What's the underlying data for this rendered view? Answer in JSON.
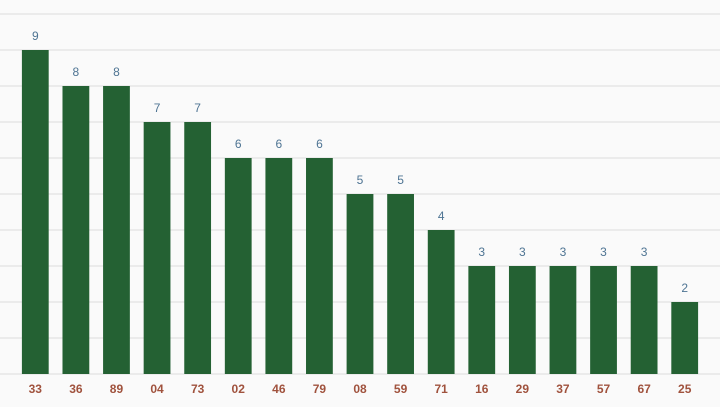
{
  "chart_data": {
    "type": "bar",
    "categories": [
      "33",
      "36",
      "89",
      "04",
      "73",
      "02",
      "46",
      "79",
      "08",
      "59",
      "71",
      "16",
      "29",
      "37",
      "57",
      "67",
      "25"
    ],
    "values": [
      9,
      8,
      8,
      7,
      7,
      6,
      6,
      6,
      5,
      5,
      4,
      3,
      3,
      3,
      3,
      3,
      2
    ],
    "color": "#246133",
    "ylim": [
      0,
      10
    ],
    "yticks": [
      0,
      1,
      2,
      3,
      4,
      5,
      6,
      7,
      8,
      9,
      10
    ],
    "grid": true
  }
}
